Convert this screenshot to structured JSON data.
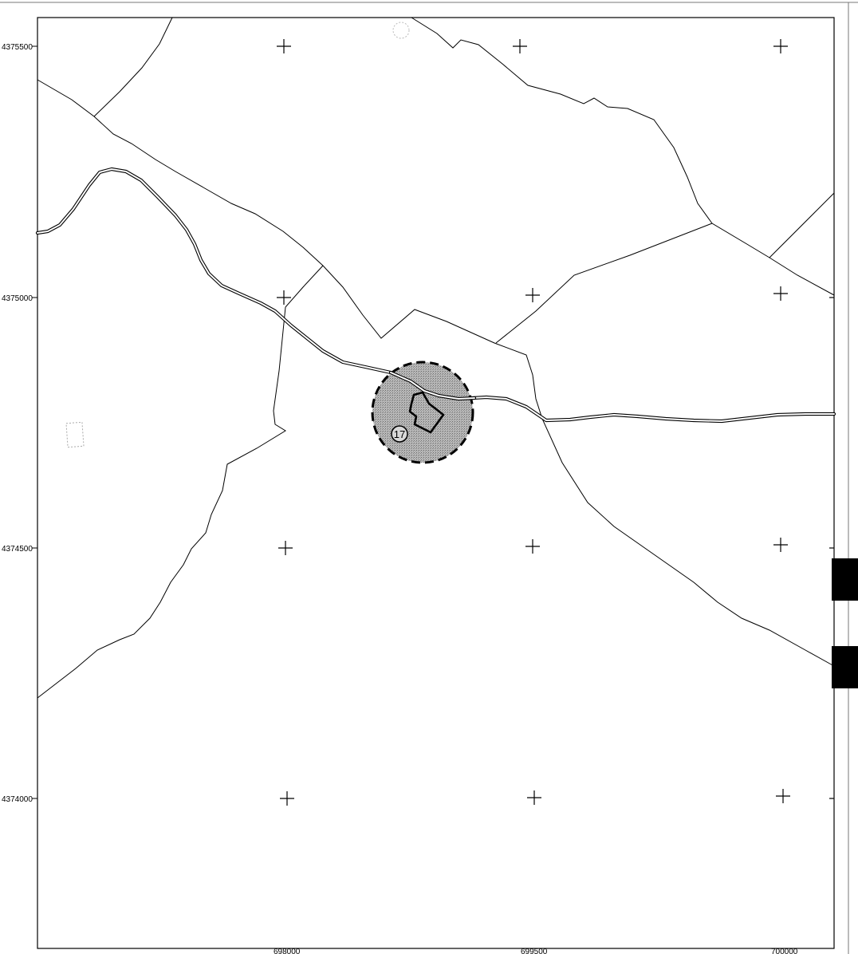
{
  "map": {
    "axes": {
      "y_labels": [
        "4375500",
        "4375000",
        "4374500",
        "4374000"
      ],
      "x_labels": [
        "698000",
        "699500",
        "700000"
      ]
    },
    "site": {
      "label": "17",
      "buffer_fill": "#a9a9a9",
      "buffer_style": "dashed"
    },
    "colors": {
      "background": "#ffffff",
      "lines": "#000000"
    }
  }
}
